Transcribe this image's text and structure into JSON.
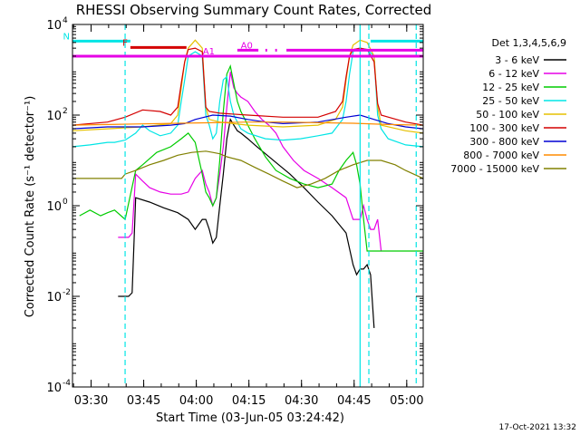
{
  "chart_data": {
    "type": "line",
    "title": "RHESSI Observing Summary Count Rates, Corrected",
    "xlabel": "Start Time (03-Jun-05 03:24:42)",
    "ylabel": "Corrected Count Rate (s⁻¹ detector⁻¹)",
    "x_units": "minutes after 03:24:42",
    "xlim": [
      0,
      100
    ],
    "ylim": [
      0.0001,
      10000
    ],
    "yscale": "log",
    "x_ticks": [
      {
        "x": 5.3,
        "label": "03:30"
      },
      {
        "x": 20.3,
        "label": "03:45"
      },
      {
        "x": 35.3,
        "label": "04:00"
      },
      {
        "x": 50.3,
        "label": "04:15"
      },
      {
        "x": 65.3,
        "label": "04:30"
      },
      {
        "x": 80.3,
        "label": "04:45"
      },
      {
        "x": 95.3,
        "label": "05:00"
      }
    ],
    "y_ticks": [
      {
        "y": 10000,
        "base": "10",
        "exp": "4"
      },
      {
        "y": 100,
        "base": "10",
        "exp": "2"
      },
      {
        "y": 1,
        "base": "10",
        "exp": "0"
      },
      {
        "y": 0.01,
        "base": "10",
        "exp": "-2"
      },
      {
        "y": 0.0001,
        "base": "10",
        "exp": "-4"
      }
    ],
    "legend_title": "Det 1,3,4,5,6,9",
    "legend_position": "right",
    "series": [
      {
        "name": "3 - 6 keV",
        "color": "#000000",
        "x": [
          13,
          15,
          16,
          17,
          18,
          22,
          26,
          30,
          33,
          35,
          37,
          38,
          39,
          40,
          41,
          42,
          43,
          44,
          45,
          46,
          47,
          48,
          50,
          52,
          55,
          58,
          62,
          66,
          70,
          74,
          78,
          80,
          81,
          82,
          83,
          84,
          85,
          86
        ],
        "y": [
          0.01,
          0.01,
          0.01,
          0.012,
          1.5,
          1.2,
          0.9,
          0.7,
          0.5,
          0.3,
          0.5,
          0.5,
          0.3,
          0.15,
          0.2,
          1,
          5,
          30,
          80,
          60,
          45,
          40,
          30,
          22,
          14,
          9,
          5,
          2.5,
          1.2,
          0.6,
          0.25,
          0.05,
          0.03,
          0.04,
          0.04,
          0.05,
          0.03,
          0.002
        ]
      },
      {
        "name": "6 - 12 keV",
        "color": "#e600e6",
        "x": [
          13,
          14,
          15,
          16,
          17,
          18,
          20,
          22,
          25,
          28,
          31,
          33,
          35,
          37,
          38,
          39,
          40,
          41,
          42,
          43,
          44,
          45,
          46,
          47,
          48,
          50,
          52,
          54,
          56,
          58,
          60,
          63,
          66,
          70,
          74,
          78,
          80,
          82,
          83,
          84,
          85,
          86,
          87,
          88
        ],
        "y": [
          0.2,
          0.2,
          0.2,
          0.2,
          0.25,
          5,
          3.5,
          2.5,
          2,
          1.8,
          1.8,
          2,
          4,
          6,
          3,
          2,
          1,
          1.5,
          5,
          20,
          150,
          900,
          400,
          300,
          250,
          200,
          120,
          80,
          60,
          40,
          20,
          10,
          6,
          4,
          2.5,
          1.5,
          0.5,
          0.5,
          1,
          0.5,
          0.3,
          0.3,
          0.5,
          0.1
        ]
      },
      {
        "name": "12 - 25 keV",
        "color": "#00cc00",
        "x": [
          2,
          5,
          8,
          10,
          12,
          15,
          18,
          20,
          24,
          28,
          31,
          33,
          35,
          37,
          38,
          39,
          40,
          41,
          42,
          43,
          44,
          45,
          46,
          47,
          48,
          50,
          52,
          55,
          58,
          62,
          66,
          70,
          74,
          76,
          78,
          80,
          81,
          82,
          83,
          84,
          85,
          86,
          87,
          88,
          90,
          95,
          100
        ],
        "y": [
          0.6,
          0.8,
          0.6,
          0.7,
          0.8,
          0.5,
          6,
          8,
          15,
          20,
          30,
          40,
          25,
          5,
          2,
          1.5,
          1,
          1.5,
          10,
          120,
          800,
          1200,
          500,
          200,
          120,
          60,
          30,
          12,
          6,
          4,
          3,
          2.5,
          3,
          6,
          10,
          15,
          8,
          3,
          0.5,
          0.1,
          0.1,
          0.1,
          0.1,
          0.1,
          0.1,
          0.1,
          0.1
        ]
      },
      {
        "name": "25 - 50 keV",
        "color": "#00e5e5",
        "x": [
          0,
          5,
          10,
          12,
          15,
          18,
          20,
          22,
          25,
          28,
          30,
          31,
          32,
          33,
          35,
          37,
          38,
          39,
          40,
          41,
          42,
          43,
          44,
          45,
          46,
          48,
          50,
          55,
          60,
          65,
          70,
          74,
          77,
          78,
          79,
          80,
          82,
          84,
          86,
          87,
          88,
          90,
          95,
          100
        ],
        "y": [
          20,
          22,
          25,
          25,
          28,
          40,
          60,
          45,
          35,
          40,
          60,
          200,
          600,
          2000,
          2500,
          2000,
          100,
          60,
          30,
          40,
          200,
          600,
          700,
          200,
          100,
          50,
          40,
          30,
          28,
          30,
          35,
          40,
          80,
          200,
          800,
          2500,
          3000,
          2800,
          2000,
          100,
          50,
          30,
          22,
          20
        ]
      },
      {
        "name": "50 - 100 keV",
        "color": "#e5c000",
        "x": [
          0,
          10,
          20,
          28,
          30,
          31,
          32,
          33,
          35,
          37,
          38,
          39,
          42,
          50,
          60,
          70,
          75,
          77,
          78,
          79,
          80,
          82,
          84,
          86,
          87,
          88,
          95,
          100
        ],
        "y": [
          45,
          50,
          55,
          65,
          100,
          400,
          1500,
          3000,
          4500,
          3000,
          150,
          80,
          70,
          60,
          55,
          60,
          80,
          150,
          600,
          2000,
          3500,
          4500,
          4000,
          2000,
          150,
          60,
          45,
          40
        ]
      },
      {
        "name": "100 - 300 keV",
        "color": "#d40000",
        "x": [
          0,
          10,
          15,
          20,
          25,
          28,
          30,
          31,
          32,
          33,
          35,
          37,
          38,
          39,
          42,
          50,
          60,
          70,
          75,
          77,
          78,
          79,
          80,
          82,
          84,
          86,
          87,
          88,
          95,
          100
        ],
        "y": [
          60,
          70,
          90,
          130,
          120,
          100,
          150,
          500,
          1500,
          2800,
          3000,
          2500,
          150,
          120,
          110,
          100,
          90,
          90,
          120,
          200,
          700,
          2000,
          2800,
          3000,
          2800,
          1500,
          180,
          100,
          70,
          60
        ]
      },
      {
        "name": "300 - 800 keV",
        "color": "#0000d4",
        "x": [
          0,
          10,
          20,
          28,
          32,
          35,
          40,
          45,
          50,
          55,
          60,
          70,
          78,
          82,
          86,
          90,
          95,
          100
        ],
        "y": [
          50,
          55,
          55,
          60,
          65,
          80,
          100,
          95,
          80,
          70,
          65,
          70,
          90,
          100,
          80,
          65,
          55,
          50
        ]
      },
      {
        "name": "800 - 7000 keV",
        "color": "#ff8c00",
        "x": [
          0,
          10,
          20,
          30,
          40,
          50,
          60,
          70,
          80,
          90,
          100
        ],
        "y": [
          60,
          62,
          64,
          66,
          68,
          70,
          70,
          68,
          66,
          62,
          60
        ]
      },
      {
        "name": "7000 - 15000 keV",
        "color": "#808000",
        "x": [
          0,
          5,
          10,
          14,
          15,
          18,
          22,
          26,
          30,
          34,
          38,
          40,
          42,
          44,
          48,
          52,
          56,
          60,
          64,
          68,
          72,
          76,
          80,
          84,
          88,
          92,
          95,
          100
        ],
        "y": [
          4,
          4,
          4,
          4,
          5,
          6,
          8,
          10,
          13,
          15,
          16,
          15,
          14,
          12,
          10,
          7,
          5,
          3.5,
          2.5,
          3,
          4,
          6,
          8,
          10,
          10,
          8,
          6,
          4
        ]
      }
    ],
    "vertical_lines": [
      {
        "x": 15,
        "color": "#00e5e5",
        "style": "dashed"
      },
      {
        "x": 82,
        "color": "#00e5e5",
        "style": "solid"
      },
      {
        "x": 84.5,
        "color": "#00e5e5",
        "style": "dashed"
      },
      {
        "x": 98,
        "color": "#00e5e5",
        "style": "dashed"
      }
    ],
    "status_bars": [
      {
        "label": "N",
        "color": "#00e5e5",
        "y": 4300,
        "segments": [
          [
            0,
            16.5
          ],
          [
            85,
            100
          ]
        ]
      },
      {
        "label": "F",
        "color": "#d40000",
        "y": 3100,
        "segments": [
          [
            16.5,
            32.5
          ]
        ]
      },
      {
        "label": "A0",
        "color": "#e600e6",
        "y": 2700,
        "segments": [
          [
            47,
            53
          ],
          [
            55,
            55.5
          ],
          [
            57.8,
            58.3
          ],
          [
            61,
            100
          ]
        ]
      },
      {
        "label": "A1",
        "color": "#e600e6",
        "y": 2000,
        "segments": [
          [
            0,
            100
          ]
        ]
      }
    ]
  },
  "stamp": "17-Oct-2021 13:32"
}
